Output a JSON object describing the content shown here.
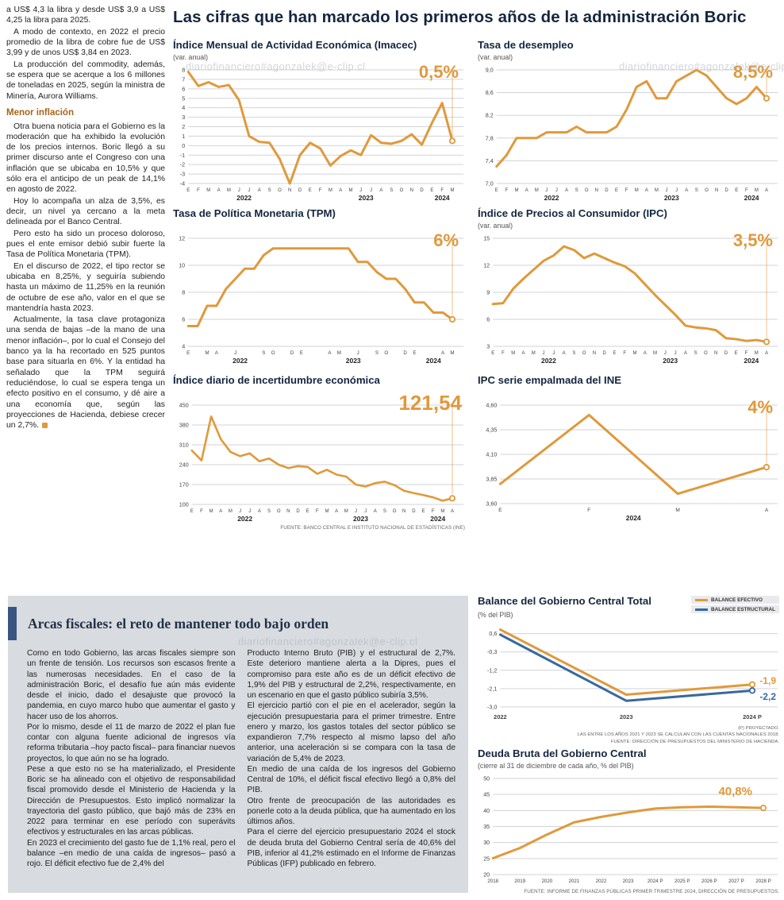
{
  "colors": {
    "orange": "#E0993B",
    "navy": "#14263F",
    "blue": "#39699F",
    "subhead": "#A5651B",
    "bar": "#3A5680"
  },
  "meta": {
    "watermark": "diariofinanciero#agonzalek@e-clip.cl"
  },
  "headline": "Las cifras que han marcado los primeros años de la administración Boric",
  "left_column": {
    "paragraphs": [
      "a US$ 4,3 la libra y desde US$ 3,9 a US$ 4,25 la libra para 2025.",
      "A modo de contexto, en 2022 el precio promedio de la libra de cobre fue de US$ 3,99 y de unos US$ 3,84 en 2023.",
      "La producción del commodity, además, se espera que se acerque a los 6 millones de toneladas en 2025, según la ministra de Minería, Aurora Williams."
    ],
    "subhead": "Menor inflación",
    "paragraphs2": [
      "Otra buena noticia para el Gobierno es la moderación que ha exhibido la evolución de los precios internos. Boric llegó a su primer discurso ante el Congreso con una inflación que se ubicaba en 10,5% y que sólo era el anticipo de un peak de 14,1% en agosto de 2022.",
      "Hoy lo acompaña un alza de 3,5%, es decir, un nivel ya cercano a la meta delineada por el Banco Central.",
      "Pero esto ha sido un proceso doloroso, pues el ente emisor debió subir fuerte la Tasa de Política Monetaria (TPM).",
      "En el discurso de 2022, el tipo rector se ubicaba en 8,25%, y seguiría subiendo hasta un máximo de 11,25% en la reunión de octubre de ese año, valor en el que se mantendría hasta 2023.",
      "Actualmente, la tasa clave protagoniza una senda de bajas –de la mano de una menor inflación–, por lo cual el Consejo del banco ya la ha recortado en 525 puntos base para situarla en 6%. Y la entidad ha señalado que la TPM seguirá reduciéndose, lo cual se espera tenga un efecto positivo en el consumo, y dé aire a una economía que, según las proyecciones de Hacienda, debiese crecer un 2,7%."
    ]
  },
  "fiscal_box": {
    "heading": "Arcas fiscales: el reto de mantener todo bajo orden",
    "col1": [
      "Como en todo Gobierno, las arcas fiscales siempre son un frente de tensión. Los recursos son escasos frente a las numerosas necesidades. En el caso de la administración Boric, el desafío fue aún más evidente desde el inicio, dado el desajuste que provocó la pandemia, en cuyo marco hubo que aumentar el gasto y hacer uso de los ahorros.",
      "Por lo mismo, desde el 11 de marzo de 2022 el plan fue contar con alguna fuente adicional de ingresos vía reforma tributaria –hoy pacto fiscal– para financiar nuevos proyectos, lo que aún no se ha logrado.",
      "Pese a que esto no se ha materializado, el Presidente Boric se ha alineado con el objetivo de responsabilidad fiscal promovido desde el Ministerio de Hacienda y la Dirección de Presupuestos. Esto implicó normalizar la trayectoria del gasto público, que bajó más de 23% en 2022 para terminar en ese período con superávits efectivos y estructurales en las arcas públicas.",
      "En 2023 el crecimiento del gasto fue de 1,1% real, pero el balance –en medio de una caída de ingresos– pasó a rojo. El déficit efectivo fue de 2,4% del"
    ],
    "col2": [
      "Producto Interno Bruto (PIB) y el estructural de 2,7%. Este deterioro mantiene alerta a la Dipres, pues el compromiso para este año es de un déficit efectivo de 1,9% del PIB y estructural de 2,2%, respectivamente, en un escenario en que el gasto público subiría 3,5%.",
      "El ejercicio partió con el pie en el acelerador, según la ejecución presupuestaria para el primer trimestre. Entre enero y marzo, los gastos totales del sector público se expandieron 7,7% respecto al mismo lapso del año anterior, una aceleración si se compara con la tasa de variación de 5,4% de 2023.",
      "En medio de una caída de los ingresos del Gobierno Central de 10%, el déficit fiscal efectivo llegó a 0,8% del PIB.",
      "Otro frente de preocupación de las autoridades es ponerle coto a la deuda pública, que ha aumentado en los últimos años.",
      "Para el cierre del ejercicio presupuestario 2024 el stock de deuda bruta del Gobierno Central sería de 40,6% del PIB, inferior al 41,2% estimado en el Informe de Finanzas Públicas (IFP) publicado en febrero."
    ]
  },
  "chart_data": [
    {
      "id": "imacec",
      "type": "line",
      "title": "Índice Mensual de Actividad Económica (Imacec)",
      "subtitle": "(var. anual)",
      "value_label": "0,5%",
      "color": "#E0993B",
      "lw": 3,
      "ymin": -4,
      "ymax": 8,
      "yticks": [
        8,
        7,
        6,
        5,
        4,
        3,
        2,
        1,
        0,
        -1,
        -2,
        -3,
        -4
      ],
      "ytick_labels": [
        "8",
        "7",
        "6",
        "5",
        "4",
        "3",
        "2",
        "1",
        "0",
        "-1",
        "-2",
        "-3",
        "-4"
      ],
      "x_labels": [
        "E",
        "F",
        "M",
        "A",
        "M",
        "J",
        "J",
        "A",
        "S",
        "O",
        "N",
        "D",
        "E",
        "F",
        "M",
        "A",
        "M",
        "J",
        "J",
        "A",
        "S",
        "O",
        "N",
        "D",
        "E",
        "F",
        "M"
      ],
      "year_groups": [
        {
          "label": "2022",
          "from": 0,
          "to": 11
        },
        {
          "label": "2023",
          "from": 12,
          "to": 23
        },
        {
          "label": "2024",
          "from": 24,
          "to": 26
        }
      ],
      "values": [
        7.8,
        6.3,
        6.7,
        6.2,
        6.4,
        4.8,
        1.0,
        0.4,
        0.3,
        -1.4,
        -4.0,
        -1.0,
        0.3,
        -0.3,
        -2.1,
        -1.1,
        -0.5,
        -1.0,
        1.1,
        0.3,
        0.2,
        0.5,
        1.2,
        0.1,
        2.4,
        4.5,
        0.5
      ]
    },
    {
      "id": "desempleo",
      "type": "line",
      "title": "Tasa de desempleo",
      "subtitle": "(var. anual)",
      "value_label": "8,5%",
      "color": "#E0993B",
      "lw": 3,
      "ymin": 7.0,
      "ymax": 9.0,
      "yticks": [
        9.0,
        8.6,
        8.2,
        7.8,
        7.4,
        7.0
      ],
      "ytick_labels": [
        "9,0",
        "8,6",
        "8,2",
        "7,8",
        "7,4",
        "7,0"
      ],
      "x_labels": [
        "E",
        "F",
        "M",
        "A",
        "M",
        "J",
        "J",
        "A",
        "S",
        "O",
        "N",
        "D",
        "E",
        "F",
        "M",
        "A",
        "M",
        "J",
        "J",
        "A",
        "S",
        "O",
        "N",
        "D",
        "E",
        "F",
        "M",
        "A"
      ],
      "year_groups": [
        {
          "label": "2022",
          "from": 0,
          "to": 11
        },
        {
          "label": "2023",
          "from": 12,
          "to": 23
        },
        {
          "label": "2024",
          "from": 24,
          "to": 27
        }
      ],
      "values": [
        7.3,
        7.5,
        7.8,
        7.8,
        7.8,
        7.9,
        7.9,
        7.9,
        8.0,
        7.9,
        7.9,
        7.9,
        8.0,
        8.3,
        8.7,
        8.8,
        8.5,
        8.5,
        8.8,
        8.9,
        9.0,
        8.9,
        8.7,
        8.5,
        8.4,
        8.5,
        8.7,
        8.5
      ]
    },
    {
      "id": "tpm",
      "type": "line",
      "title": "Tasa de Política Monetaria (TPM)",
      "subtitle": "",
      "value_label": "6%",
      "color": "#E0993B",
      "lw": 3,
      "ymin": 4,
      "ymax": 12,
      "yticks": [
        12,
        10,
        8,
        6,
        4
      ],
      "ytick_labels": [
        "12",
        "10",
        "8",
        "6",
        "4"
      ],
      "xfs": 6.2,
      "x_labels": [
        "E",
        "",
        "M",
        "A",
        "",
        "J",
        "",
        "",
        "S",
        "O",
        "",
        "D",
        "E",
        "",
        "",
        "A",
        "M",
        "",
        "J",
        "",
        "S",
        "O",
        "",
        "D",
        "E",
        "",
        "",
        "A",
        "M"
      ],
      "year_groups": [
        {
          "label": "2022",
          "from": 0,
          "to": 11
        },
        {
          "label": "2023",
          "from": 12,
          "to": 23
        },
        {
          "label": "2024",
          "from": 24,
          "to": 28
        }
      ],
      "values": [
        5.5,
        5.5,
        7.0,
        7.0,
        8.25,
        9.0,
        9.75,
        9.75,
        10.75,
        11.25,
        11.25,
        11.25,
        11.25,
        11.25,
        11.25,
        11.25,
        11.25,
        11.25,
        10.25,
        10.25,
        9.5,
        9.0,
        9.0,
        8.25,
        7.25,
        7.25,
        6.5,
        6.5,
        6.0
      ]
    },
    {
      "id": "ipc",
      "type": "line",
      "title": "Índice de Precios al Consumidor (IPC)",
      "subtitle": "(var. anual)",
      "value_label": "3,5%",
      "color": "#E0993B",
      "lw": 3,
      "ymin": 3,
      "ymax": 15,
      "yticks": [
        15,
        12,
        9,
        6,
        3
      ],
      "ytick_labels": [
        "15",
        "12",
        "9",
        "6",
        "3"
      ],
      "x_labels": [
        "E",
        "F",
        "M",
        "A",
        "M",
        "J",
        "J",
        "A",
        "S",
        "O",
        "N",
        "D",
        "E",
        "F",
        "M",
        "A",
        "M",
        "J",
        "J",
        "A",
        "S",
        "O",
        "N",
        "D",
        "E",
        "F",
        "M",
        "A"
      ],
      "year_groups": [
        {
          "label": "2022",
          "from": 0,
          "to": 11
        },
        {
          "label": "2023",
          "from": 12,
          "to": 23
        },
        {
          "label": "2024",
          "from": 24,
          "to": 27
        }
      ],
      "values": [
        7.7,
        7.8,
        9.4,
        10.5,
        11.5,
        12.5,
        13.1,
        14.1,
        13.7,
        12.8,
        13.3,
        12.8,
        12.3,
        11.9,
        11.1,
        9.9,
        8.7,
        7.6,
        6.5,
        5.3,
        5.1,
        5.0,
        4.8,
        3.9,
        3.8,
        3.6,
        3.7,
        3.5
      ]
    },
    {
      "id": "incertidumbre",
      "type": "line",
      "title": "Índice diario de incertidumbre económica",
      "subtitle": "",
      "value_label": "121,54",
      "color": "#E0993B",
      "lw": 2.6,
      "ymin": 100,
      "ymax": 450,
      "yticks": [
        450,
        380,
        310,
        240,
        170,
        100
      ],
      "ytick_labels": [
        "450",
        "380",
        "310",
        "240",
        "170",
        "100"
      ],
      "x_labels": [
        "E",
        "F",
        "M",
        "A",
        "M",
        "J",
        "J",
        "A",
        "S",
        "O",
        "N",
        "D",
        "E",
        "F",
        "M",
        "A",
        "M",
        "J",
        "J",
        "A",
        "S",
        "O",
        "N",
        "D",
        "E",
        "F",
        "M",
        "A"
      ],
      "year_groups": [
        {
          "label": "2022",
          "from": 0,
          "to": 11
        },
        {
          "label": "2023",
          "from": 12,
          "to": 23
        },
        {
          "label": "2024",
          "from": 24,
          "to": 27
        }
      ],
      "values": [
        290,
        255,
        410,
        330,
        285,
        270,
        280,
        252,
        262,
        240,
        228,
        235,
        232,
        208,
        222,
        205,
        198,
        170,
        163,
        175,
        180,
        168,
        148,
        140,
        133,
        125,
        113,
        121.54
      ],
      "source": "FUENTE: BANCO CENTRAL E INSTITUTO NACIONAL DE ESTADÍSTICAS (INE)"
    },
    {
      "id": "ipc_ine",
      "type": "line",
      "title": "IPC serie empalmada del INE",
      "subtitle": "",
      "value_label": "4%",
      "color": "#E0993B",
      "lw": 3,
      "ymin": 3.6,
      "ymax": 4.6,
      "yticks": [
        4.6,
        4.35,
        4.1,
        3.85,
        3.6
      ],
      "ytick_labels": [
        "4,60",
        "4,35",
        "4,10",
        "3,85",
        "3,60"
      ],
      "xfs": 6.5,
      "x_labels": [
        "E",
        "F",
        "M",
        "A"
      ],
      "year_groups": [
        {
          "label": "2024",
          "from": 0,
          "to": 3
        }
      ],
      "values": [
        3.8,
        4.5,
        3.7,
        3.97
      ]
    },
    {
      "id": "balance",
      "type": "line",
      "title": "Balance del Gobierno Central Total",
      "subtitle": "(% del PIB)",
      "ymin": -3.2,
      "ymax": 0.9,
      "yticks": [
        0.6,
        -0.3,
        -1.2,
        -2.1,
        -3.0
      ],
      "ytick_labels": [
        "0,6",
        "-0,3",
        "-1,2",
        "-2,1",
        "-3,0"
      ],
      "x_labels": [
        "2022",
        "2023",
        "2024 P"
      ],
      "xfs": 7.5,
      "xbold": true,
      "mr": 34,
      "guide": false,
      "lw": 3,
      "series": [
        {
          "name": "BALANCE EFECTIVO",
          "color": "#E0993B",
          "values": [
            0.8,
            -2.4,
            -1.9
          ]
        },
        {
          "name": "BALANCE ESTRUCTURAL",
          "color": "#39699F",
          "values": [
            0.55,
            -2.7,
            -2.2
          ]
        }
      ],
      "end_labels": [
        "-1,9",
        "-2,2"
      ],
      "footnotes": [
        "(P) PROYECTADO.",
        "LAS ENTRE LOS AÑOS 2021 Y 2023 SE CALCULAN  CON LAS CUENTAS NACIONALES 2018.",
        "FUENTE: DIRECCIÓN DE PRESUPUESTOS DEL MINISTERIO DE HACIENDA."
      ]
    },
    {
      "id": "deuda",
      "type": "line",
      "title": "Deuda Bruta del Gobierno Central",
      "subtitle": "(cierre al 31 de diciembre de cada año, % del PIB)",
      "value_label": "40,8%",
      "color": "#E0993B",
      "lw": 3,
      "ymin": 20,
      "ymax": 50,
      "yticks": [
        50,
        45,
        40,
        35,
        30,
        25,
        20
      ],
      "ytick_labels": [
        "50",
        "45",
        "40",
        "35",
        "30",
        "25",
        "20"
      ],
      "x_labels": [
        "2018",
        "2019",
        "2020",
        "2021",
        "2022",
        "2023",
        "2024 P",
        "2025 P",
        "2026 P",
        "2027 P",
        "2028 P"
      ],
      "xfs": 6.2,
      "guide": false,
      "mr": 20,
      "values": [
        25.1,
        28.3,
        32.5,
        36.3,
        38.0,
        39.4,
        40.6,
        41.0,
        41.2,
        41.0,
        40.8
      ],
      "source": "FUENTE: INFORME DE FINANZAS PÚBLICAS PRIMER TRIMESTRE 2024, DIRECCIÓN DE PRESUPUESTOS."
    }
  ]
}
